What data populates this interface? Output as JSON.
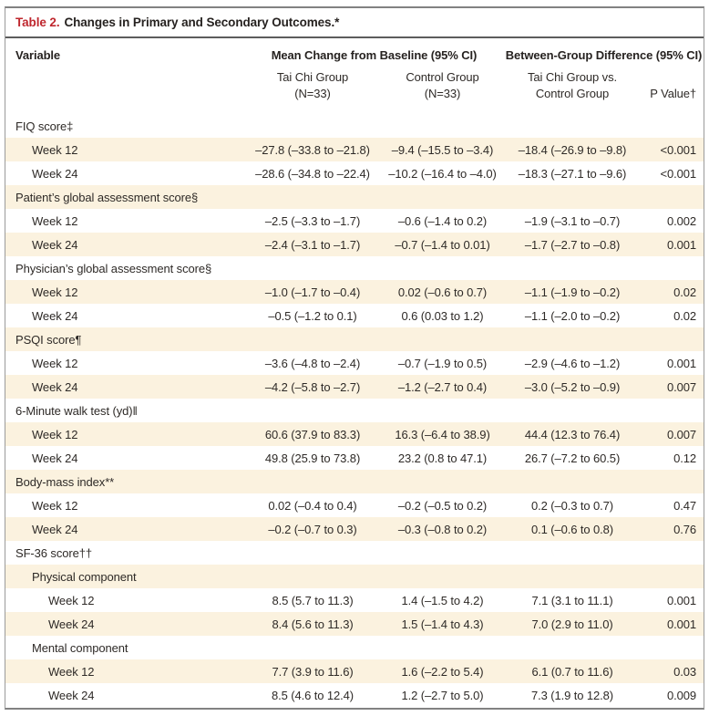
{
  "colors": {
    "accent_red": "#bf272e",
    "stripe_cream": "#fbf2df",
    "border_gray": "#9a9a9a",
    "rule_dark": "#5c5c5c",
    "text": "#2e2a27"
  },
  "table": {
    "label": "Table 2.",
    "title": "Changes in Primary and Secondary Outcomes.*",
    "header": {
      "variable": "Variable",
      "group1": "Mean Change from Baseline (95% CI)",
      "group2": "Between-Group Difference (95% CI)",
      "sub_taichi": "Tai Chi Group\n(N=33)",
      "sub_control": "Control Group\n(N=33)",
      "sub_diff": "Tai Chi Group vs.\nControl Group",
      "sub_p": "P Value†"
    },
    "rows": [
      {
        "label": "FIQ score‡",
        "indent": 0
      },
      {
        "label": "Week 12",
        "indent": 1,
        "taichi": "–27.8 (–33.8 to –21.8)",
        "control": "–9.4 (–15.5 to –3.4)",
        "diff": "–18.4 (–26.9 to –9.8)",
        "p": "<0.001"
      },
      {
        "label": "Week 24",
        "indent": 1,
        "taichi": "–28.6 (–34.8 to –22.4)",
        "control": "–10.2 (–16.4 to –4.0)",
        "diff": "–18.3 (–27.1 to –9.6)",
        "p": "<0.001"
      },
      {
        "label": "Patient’s global assessment score§",
        "indent": 0
      },
      {
        "label": "Week 12",
        "indent": 1,
        "taichi": "–2.5 (–3.3 to –1.7)",
        "control": "–0.6 (–1.4 to 0.2)",
        "diff": "–1.9 (–3.1 to –0.7)",
        "p": "0.002"
      },
      {
        "label": "Week 24",
        "indent": 1,
        "taichi": "–2.4 (–3.1 to –1.7)",
        "control": "–0.7 (–1.4 to 0.01)",
        "diff": "–1.7 (–2.7 to –0.8)",
        "p": "0.001"
      },
      {
        "label": "Physician’s global assessment score§",
        "indent": 0
      },
      {
        "label": "Week 12",
        "indent": 1,
        "taichi": "–1.0 (–1.7 to –0.4)",
        "control": "0.02 (–0.6 to 0.7)",
        "diff": "–1.1 (–1.9 to –0.2)",
        "p": "0.02"
      },
      {
        "label": "Week 24",
        "indent": 1,
        "taichi": "–0.5 (–1.2 to 0.1)",
        "control": "0.6 (0.03 to 1.2)",
        "diff": "–1.1 (–2.0 to –0.2)",
        "p": "0.02"
      },
      {
        "label": "PSQI score¶",
        "indent": 0
      },
      {
        "label": "Week 12",
        "indent": 1,
        "taichi": "–3.6 (–4.8 to –2.4)",
        "control": "–0.7 (–1.9 to 0.5)",
        "diff": "–2.9 (–4.6 to –1.2)",
        "p": "0.001"
      },
      {
        "label": "Week 24",
        "indent": 1,
        "taichi": "–4.2 (–5.8 to –2.7)",
        "control": "–1.2 (–2.7 to 0.4)",
        "diff": "–3.0 (–5.2 to –0.9)",
        "p": "0.007"
      },
      {
        "label": "6-Minute walk test (yd)‖",
        "indent": 0
      },
      {
        "label": "Week 12",
        "indent": 1,
        "taichi": "60.6 (37.9 to 83.3)",
        "control": "16.3 (–6.4 to 38.9)",
        "diff": "44.4 (12.3 to 76.4)",
        "p": "0.007"
      },
      {
        "label": "Week 24",
        "indent": 1,
        "taichi": "49.8 (25.9 to 73.8)",
        "control": "23.2 (0.8 to 47.1)",
        "diff": "26.7 (–7.2 to 60.5)",
        "p": "0.12"
      },
      {
        "label": "Body-mass index**",
        "indent": 0
      },
      {
        "label": "Week 12",
        "indent": 1,
        "taichi": "0.02 (–0.4 to 0.4)",
        "control": "–0.2 (–0.5 to 0.2)",
        "diff": "0.2 (–0.3 to 0.7)",
        "p": "0.47"
      },
      {
        "label": "Week 24",
        "indent": 1,
        "taichi": "–0.2 (–0.7 to 0.3)",
        "control": "–0.3 (–0.8 to 0.2)",
        "diff": "0.1 (–0.6 to 0.8)",
        "p": "0.76"
      },
      {
        "label": "SF-36 score††",
        "indent": 0
      },
      {
        "label": "Physical component",
        "indent": 1
      },
      {
        "label": "Week 12",
        "indent": 2,
        "taichi": "8.5 (5.7 to 11.3)",
        "control": "1.4 (–1.5 to 4.2)",
        "diff": "7.1 (3.1 to 11.1)",
        "p": "0.001"
      },
      {
        "label": "Week 24",
        "indent": 2,
        "taichi": "8.4 (5.6 to 11.3)",
        "control": "1.5 (–1.4 to 4.3)",
        "diff": "7.0 (2.9 to 11.0)",
        "p": "0.001"
      },
      {
        "label": "Mental component",
        "indent": 1
      },
      {
        "label": "Week 12",
        "indent": 2,
        "taichi": "7.7 (3.9 to 11.6)",
        "control": "1.6 (–2.2 to 5.4)",
        "diff": "6.1 (0.7 to 11.6)",
        "p": "0.03"
      },
      {
        "label": "Week 24",
        "indent": 2,
        "taichi": "8.5 (4.6 to 12.4)",
        "control": "1.2 (–2.7 to 5.0)",
        "diff": "7.3 (1.9 to 12.8)",
        "p": "0.009"
      }
    ]
  }
}
